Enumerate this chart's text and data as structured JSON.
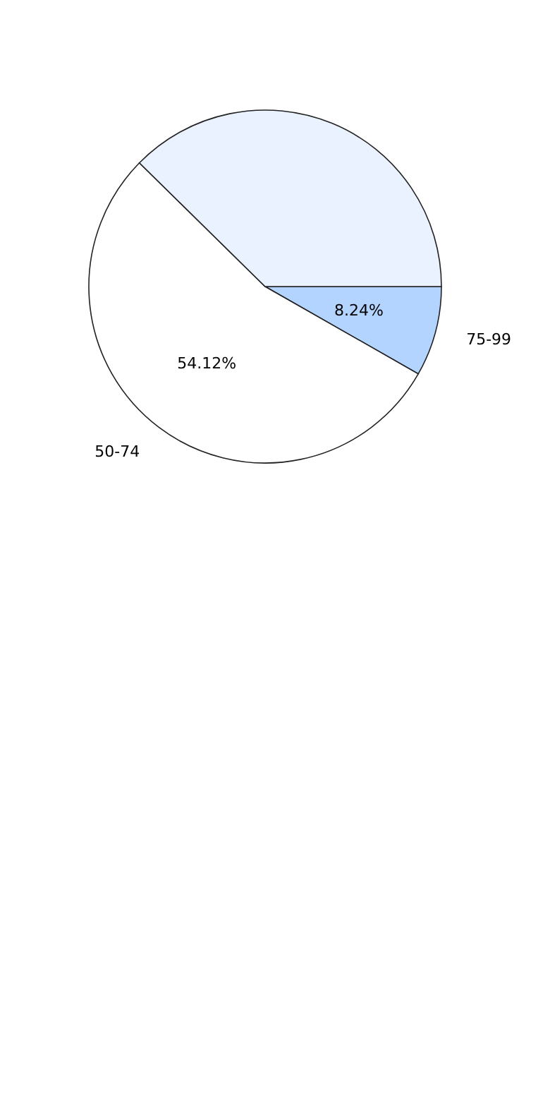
{
  "chart_data": {
    "type": "pie",
    "categories": [
      "75-99",
      "50-74",
      null
    ],
    "values": [
      8.24,
      54.12,
      37.64
    ],
    "colors": [
      "#b3d4ff",
      "#ffffff",
      "#eaf1ff"
    ],
    "value_labels": [
      "8.24%",
      "54.12%",
      null
    ]
  }
}
